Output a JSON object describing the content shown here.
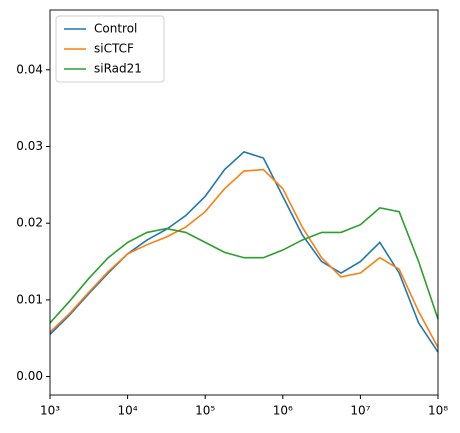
{
  "chart_data": {
    "type": "line",
    "xscale": "log",
    "legend": "upper left",
    "x": [
      1000,
      1778,
      3162,
      5623,
      10000,
      17783,
      31623,
      56234,
      100000,
      177828,
      316228,
      562341,
      1000000,
      1778279,
      3162278,
      5623413,
      10000000,
      17782794,
      31622777,
      56234133,
      100000000
    ],
    "series": [
      {
        "name": "Control",
        "color": "#1f77b4",
        "values": [
          0.0055,
          0.008,
          0.0108,
          0.0135,
          0.016,
          0.0178,
          0.0192,
          0.021,
          0.0235,
          0.027,
          0.0293,
          0.0285,
          0.0235,
          0.0185,
          0.015,
          0.0135,
          0.015,
          0.0175,
          0.0135,
          0.007,
          0.0032
        ]
      },
      {
        "name": "siCTCF",
        "color": "#ff7f0e",
        "values": [
          0.0058,
          0.0082,
          0.011,
          0.0137,
          0.016,
          0.0172,
          0.0182,
          0.0195,
          0.0215,
          0.0245,
          0.0268,
          0.027,
          0.0245,
          0.0195,
          0.0155,
          0.013,
          0.0135,
          0.0155,
          0.014,
          0.0085,
          0.0038
        ]
      },
      {
        "name": "siRad21",
        "color": "#2ca02c",
        "values": [
          0.007,
          0.0098,
          0.0128,
          0.0155,
          0.0175,
          0.0188,
          0.0193,
          0.0188,
          0.0175,
          0.0162,
          0.0155,
          0.0155,
          0.0165,
          0.0178,
          0.0188,
          0.0188,
          0.0198,
          0.022,
          0.0215,
          0.015,
          0.0075
        ]
      }
    ],
    "xlim": [
      1000,
      100000000
    ],
    "xticks": [
      {
        "value": 1000,
        "label": "10³"
      },
      {
        "value": 10000,
        "label": "10⁴"
      },
      {
        "value": 100000,
        "label": "10⁵"
      },
      {
        "value": 1000000,
        "label": "10⁶"
      },
      {
        "value": 10000000,
        "label": "10⁷"
      },
      {
        "value": 100000000,
        "label": "10⁸"
      }
    ],
    "ylim": [
      -0.0024,
      0.0478
    ],
    "yticks": [
      {
        "value": 0,
        "label": "0.00"
      },
      {
        "value": 0.01,
        "label": "0.01"
      },
      {
        "value": 0.02,
        "label": "0.02"
      },
      {
        "value": 0.03,
        "label": "0.03"
      },
      {
        "value": 0.04,
        "label": "0.04"
      }
    ]
  }
}
